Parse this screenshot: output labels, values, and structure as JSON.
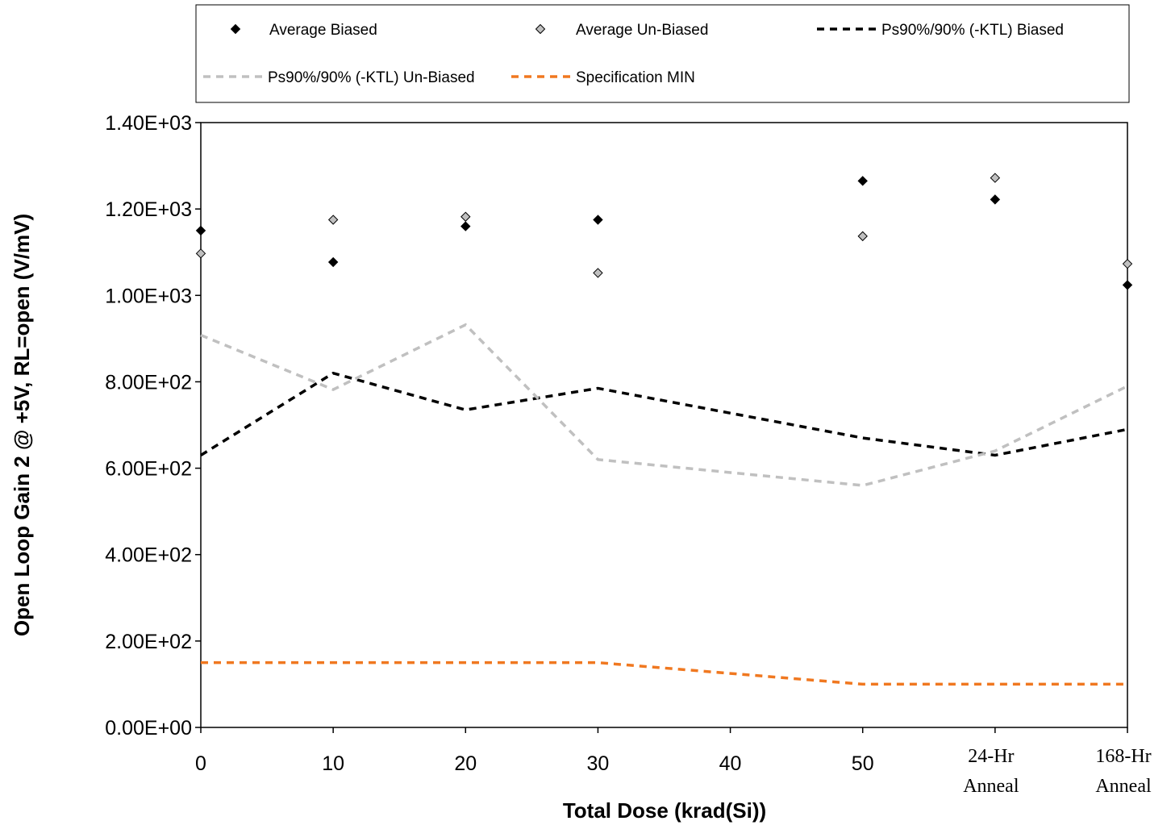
{
  "chart_data": {
    "type": "scatter",
    "xlabel": "Total Dose (krad(Si))",
    "ylabel": "Open Loop Gain 2 @ +5V, RL=open (V/mV)",
    "x_ticks": [
      "0",
      "10",
      "20",
      "30",
      "40",
      "50",
      "24-Hr Anneal",
      "168-Hr Anneal"
    ],
    "x_tick_values": [
      0,
      10,
      20,
      30,
      40,
      50,
      60,
      70
    ],
    "ylim": [
      0,
      1400
    ],
    "y_ticks": [
      0,
      200,
      400,
      600,
      800,
      1000,
      1200,
      1400
    ],
    "y_tick_labels": [
      "0.00E+00",
      "2.00E+02",
      "4.00E+02",
      "6.00E+02",
      "8.00E+02",
      "1.00E+03",
      "1.20E+03",
      "1.40E+03"
    ],
    "legend_position": "top",
    "series": [
      {
        "name": "Average Biased",
        "style": "marker",
        "color": "#000000",
        "x": [
          0,
          10,
          20,
          30,
          50,
          60,
          70
        ],
        "y": [
          1150,
          1077,
          1160,
          1175,
          1265,
          1222,
          1024
        ]
      },
      {
        "name": "Average Un-Biased",
        "style": "marker",
        "color": "#c0c0c0",
        "x": [
          0,
          10,
          20,
          30,
          50,
          60,
          70
        ],
        "y": [
          1097,
          1175,
          1182,
          1052,
          1137,
          1272,
          1073
        ]
      },
      {
        "name": "Ps90%/90% (-KTL) Biased",
        "style": "dashed",
        "color": "#000000",
        "x": [
          0,
          10,
          20,
          30,
          50,
          60,
          70
        ],
        "y": [
          630,
          820,
          735,
          785,
          670,
          630,
          690
        ]
      },
      {
        "name": "Ps90%/90% (-KTL) Un-Biased",
        "style": "dashed",
        "color": "#c0c0c0",
        "x": [
          0,
          10,
          20,
          30,
          50,
          60,
          70
        ],
        "y": [
          908,
          782,
          932,
          620,
          560,
          640,
          790
        ]
      },
      {
        "name": "Specification MIN",
        "style": "dashed",
        "color": "#f07820",
        "x": [
          0,
          10,
          20,
          30,
          50,
          60,
          70
        ],
        "y": [
          150,
          150,
          150,
          150,
          100,
          100,
          100
        ]
      }
    ]
  }
}
